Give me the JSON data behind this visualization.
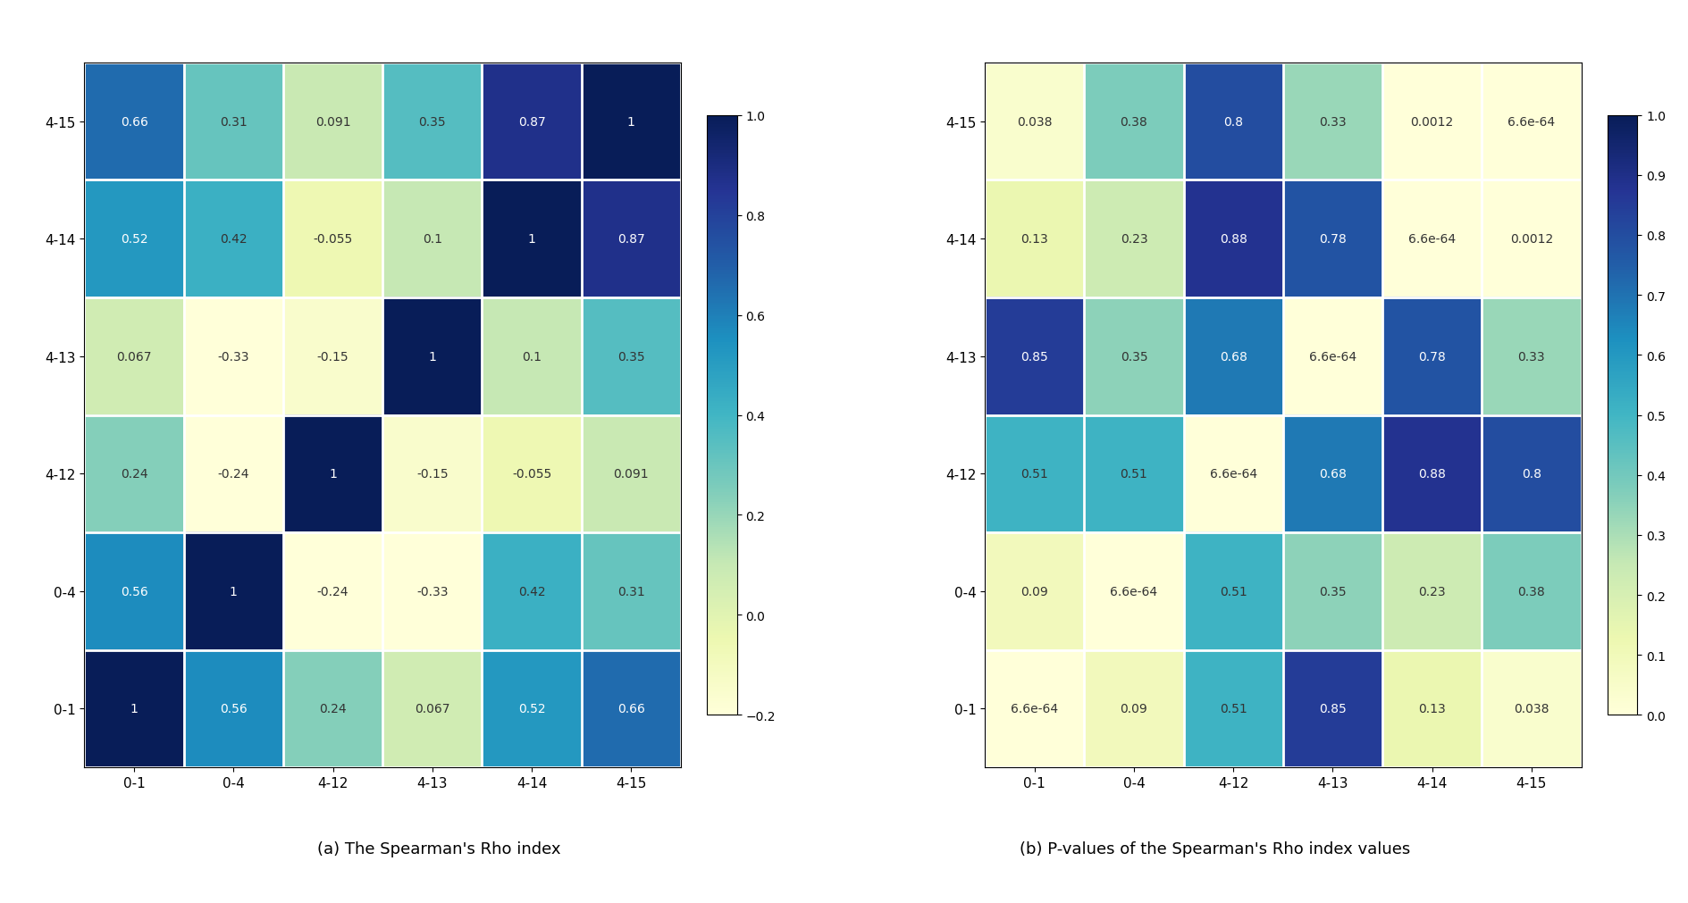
{
  "labels": [
    "0-1",
    "0-4",
    "4-12",
    "4-13",
    "4-14",
    "4-15"
  ],
  "labels_reversed": [
    "4-15",
    "4-14",
    "4-13",
    "4-12",
    "0-4",
    "0-1"
  ],
  "rho_matrix_display": [
    [
      0.66,
      0.31,
      0.091,
      0.35,
      0.87,
      1.0
    ],
    [
      0.52,
      0.42,
      -0.055,
      0.1,
      1.0,
      0.87
    ],
    [
      0.067,
      -0.33,
      -0.15,
      1.0,
      0.1,
      0.35
    ],
    [
      0.24,
      -0.24,
      1.0,
      -0.15,
      -0.055,
      0.091
    ],
    [
      0.56,
      1.0,
      -0.24,
      -0.33,
      0.42,
      0.31
    ],
    [
      1.0,
      0.56,
      0.24,
      0.067,
      0.52,
      0.66
    ]
  ],
  "pval_matrix_display": [
    [
      0.038,
      0.38,
      0.8,
      0.33,
      0.0012,
      6.6e-64
    ],
    [
      0.13,
      0.23,
      0.88,
      0.78,
      6.6e-64,
      0.0012
    ],
    [
      0.85,
      0.35,
      0.68,
      6.6e-64,
      0.78,
      0.33
    ],
    [
      0.51,
      0.51,
      6.6e-64,
      0.68,
      0.88,
      0.8
    ],
    [
      0.09,
      6.6e-64,
      0.51,
      0.35,
      0.23,
      0.38
    ],
    [
      6.6e-64,
      0.09,
      0.51,
      0.85,
      0.13,
      0.038
    ]
  ],
  "rho_text_display": [
    [
      "0.66",
      "0.31",
      "0.091",
      "0.35",
      "0.87",
      "1"
    ],
    [
      "0.52",
      "0.42",
      "-0.055",
      "0.1",
      "1",
      "0.87"
    ],
    [
      "0.067",
      "-0.33",
      "-0.15",
      "1",
      "0.1",
      "0.35"
    ],
    [
      "0.24",
      "-0.24",
      "1",
      "-0.15",
      "-0.055",
      "0.091"
    ],
    [
      "0.56",
      "1",
      "-0.24",
      "-0.33",
      "0.42",
      "0.31"
    ],
    [
      "1",
      "0.56",
      "0.24",
      "0.067",
      "0.52",
      "0.66"
    ]
  ],
  "pval_text_display": [
    [
      "0.038",
      "0.38",
      "0.8",
      "0.33",
      "0.0012",
      "6.6e-64"
    ],
    [
      "0.13",
      "0.23",
      "0.88",
      "0.78",
      "6.6e-64",
      "0.0012"
    ],
    [
      "0.85",
      "0.35",
      "0.68",
      "6.6e-64",
      "0.78",
      "0.33"
    ],
    [
      "0.51",
      "0.51",
      "6.6e-64",
      "0.68",
      "0.88",
      "0.8"
    ],
    [
      "0.09",
      "6.6e-64",
      "0.51",
      "0.35",
      "0.23",
      "0.38"
    ],
    [
      "6.6e-64",
      "0.09",
      "0.51",
      "0.85",
      "0.13",
      "0.038"
    ]
  ],
  "rho_vmin": -0.2,
  "rho_vmax": 1.0,
  "pval_vmin": 0.0,
  "pval_vmax": 1.0,
  "title_a": "(a) The Spearman's Rho index",
  "title_b": "(b) P-values of the Spearman's Rho index values",
  "cmap_rho": "YlGnBu",
  "cmap_pval": "YlGnBu",
  "background_color": "#ffffff",
  "rho_cbar_ticks": [
    1.0,
    0.8,
    0.6,
    0.4,
    0.2,
    0.0,
    -0.2
  ],
  "pval_cbar_ticks": [
    1.0,
    0.9,
    0.8,
    0.7,
    0.6,
    0.5,
    0.4,
    0.3,
    0.2,
    0.1,
    0.0
  ]
}
